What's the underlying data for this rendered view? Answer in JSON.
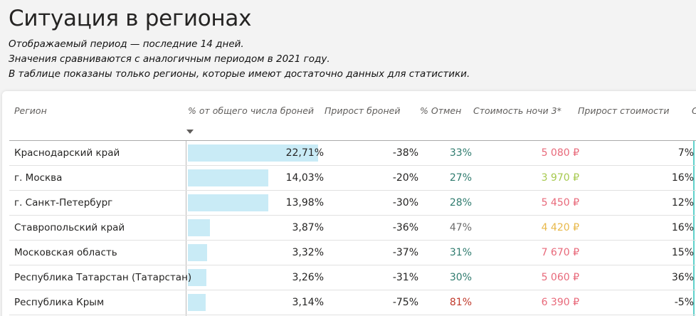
{
  "page": {
    "title": "Ситуация в регионах",
    "subtitle_lines": [
      "Отображаемый период — последние 14 дней.",
      "Значения сравниваются с аналогичным периодом в 2021 году.",
      "В таблице показаны только регионы, которые имеют достаточно данных для статистики."
    ]
  },
  "table": {
    "columns": [
      "Регион",
      "% от общего числа броней",
      "Прирост броней",
      "% Отмен",
      "Стоимость ночи 3*",
      "Прирост стоимости",
      "Ср"
    ],
    "sort_icon": "sort-descending-icon",
    "rows": [
      {
        "region": "Краснодарский край",
        "share": "22,71%",
        "share_value": 22.71,
        "growth": "-38%",
        "cancel": "33%",
        "cancel_color": "#2f7b6e",
        "price": "5 080 ₽",
        "price_color": "#e8697a",
        "price_growth": "7%"
      },
      {
        "region": "г. Москва",
        "share": "14,03%",
        "share_value": 14.03,
        "growth": "-20%",
        "cancel": "27%",
        "cancel_color": "#2f7b6e",
        "price": "3 970 ₽",
        "price_color": "#a7c94f",
        "price_growth": "16%"
      },
      {
        "region": "г. Санкт-Петербург",
        "share": "13,98%",
        "share_value": 13.98,
        "growth": "-30%",
        "cancel": "28%",
        "cancel_color": "#2f7b6e",
        "price": "5 450 ₽",
        "price_color": "#e8697a",
        "price_growth": "12%"
      },
      {
        "region": "Ставропольский край",
        "share": "3,87%",
        "share_value": 3.87,
        "growth": "-36%",
        "cancel": "47%",
        "cancel_color": "#6b6b6b",
        "price": "4 420 ₽",
        "price_color": "#e8b84a",
        "price_growth": "16%"
      },
      {
        "region": "Московская область",
        "share": "3,32%",
        "share_value": 3.32,
        "growth": "-37%",
        "cancel": "31%",
        "cancel_color": "#2f7b6e",
        "price": "7 670 ₽",
        "price_color": "#e8697a",
        "price_growth": "15%"
      },
      {
        "region": "Республика Татарстан (Татарстан)",
        "share": "3,26%",
        "share_value": 3.26,
        "growth": "-31%",
        "cancel": "30%",
        "cancel_color": "#2f7b6e",
        "price": "5 060 ₽",
        "price_color": "#e8697a",
        "price_growth": "36%"
      },
      {
        "region": "Республика Крым",
        "share": "3,14%",
        "share_value": 3.14,
        "growth": "-75%",
        "cancel": "81%",
        "cancel_color": "#c0392b",
        "price": "6 390 ₽",
        "price_color": "#e8697a",
        "price_growth": "-5%"
      }
    ]
  },
  "colors": {
    "bar": "#c9ebf6",
    "accent_line": "#5fd0cb"
  }
}
